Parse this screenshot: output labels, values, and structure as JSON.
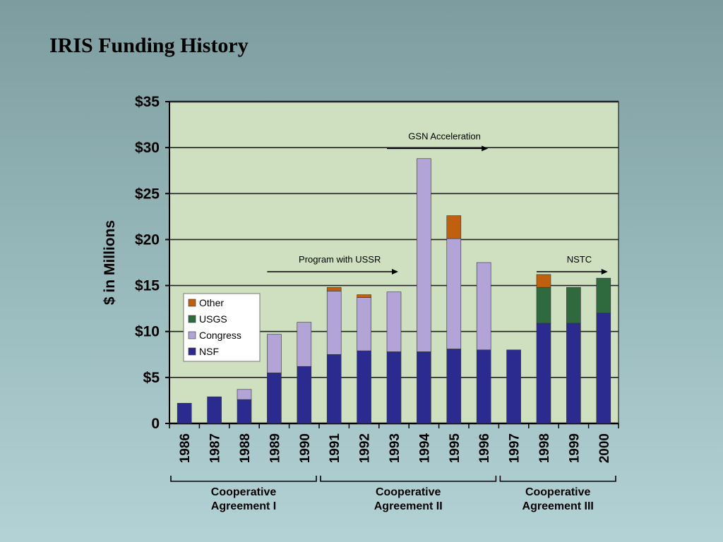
{
  "slide": {
    "title": "IRIS Funding History"
  },
  "chart_data": {
    "type": "bar",
    "stacked": true,
    "title": "",
    "ylabel": "$ in Millions",
    "xlabel": "",
    "ylim": [
      0,
      35
    ],
    "yticks": [
      0,
      5,
      10,
      15,
      20,
      25,
      30,
      35
    ],
    "ytick_labels": [
      "0",
      "$5",
      "$10",
      "$15",
      "$20",
      "$25",
      "$30",
      "$35"
    ],
    "grid": true,
    "legend_position": "left",
    "categories": [
      "1986",
      "1987",
      "1988",
      "1989",
      "1990",
      "1991",
      "1992",
      "1993",
      "1994",
      "1995",
      "1996",
      "1997",
      "1998",
      "1999",
      "2000"
    ],
    "series": [
      {
        "name": "NSF",
        "color": "#2b2b8f",
        "values": [
          2.2,
          2.9,
          2.6,
          5.5,
          6.2,
          7.5,
          7.9,
          7.8,
          7.8,
          8.1,
          8.0,
          8.0,
          10.9,
          10.9,
          12.0
        ]
      },
      {
        "name": "Congress",
        "color": "#b3a4d8",
        "values": [
          0,
          0,
          1.1,
          4.2,
          4.8,
          6.9,
          5.8,
          6.5,
          21.0,
          12.0,
          9.5,
          0,
          0,
          0,
          0
        ]
      },
      {
        "name": "USGS",
        "color": "#2f6a3f",
        "values": [
          0,
          0,
          0,
          0,
          0,
          0,
          0,
          0,
          0,
          0,
          0,
          0,
          3.9,
          3.9,
          3.8
        ]
      },
      {
        "name": "Other",
        "color": "#c0600f",
        "values": [
          0,
          0,
          0,
          0,
          0,
          0.4,
          0.3,
          0,
          0,
          2.5,
          0,
          0,
          1.4,
          0,
          0
        ]
      }
    ],
    "legend_order": [
      "Other",
      "USGS",
      "Congress",
      "NSF"
    ],
    "annotations": [
      {
        "text": "GSN Acceleration",
        "from": "1993",
        "to": "1996",
        "y": 30.9
      },
      {
        "text": "Program with USSR",
        "from": "1989",
        "to": "1993",
        "y": 17.5
      },
      {
        "text": "NSTC",
        "from": "1998",
        "to": "2000",
        "y": 17.5
      }
    ],
    "groups": [
      {
        "label_line1": "Cooperative",
        "label_line2": "Agreement I",
        "from": "1986",
        "to": "1990"
      },
      {
        "label_line1": "Cooperative",
        "label_line2": "Agreement II",
        "from": "1991",
        "to": "1996"
      },
      {
        "label_line1": "Cooperative",
        "label_line2": "Agreement III",
        "from": "1997",
        "to": "2000"
      }
    ],
    "colors": {
      "plot_background": "#cfe0c0",
      "gridline": "#222222"
    }
  }
}
